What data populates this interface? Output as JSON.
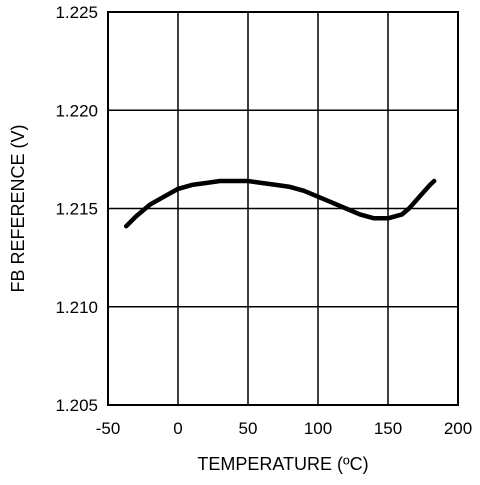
{
  "chart_data": {
    "type": "line",
    "title": "",
    "xlabel": "TEMPERATURE (ºC)",
    "ylabel": "FB REFERENCE (V)",
    "xlim": [
      -50,
      200
    ],
    "ylim": [
      1.205,
      1.225
    ],
    "x_ticks": [
      "-50",
      "0",
      "50",
      "100",
      "150",
      "200"
    ],
    "y_ticks": [
      "1.205",
      "1.210",
      "1.215",
      "1.220",
      "1.225"
    ],
    "grid": true,
    "legend": "none",
    "line_color": "#000000",
    "series": [
      {
        "x": [
          -37,
          -30,
          -20,
          -10,
          0,
          10,
          20,
          30,
          40,
          50,
          60,
          70,
          80,
          90,
          100,
          110,
          120,
          130,
          140,
          150,
          160,
          165,
          170,
          175,
          180,
          183
        ],
        "y": [
          1.2141,
          1.2146,
          1.2152,
          1.2156,
          1.216,
          1.2162,
          1.2163,
          1.2164,
          1.2164,
          1.2164,
          1.2163,
          1.2162,
          1.2161,
          1.2159,
          1.2156,
          1.2153,
          1.215,
          1.2147,
          1.2145,
          1.2145,
          1.2147,
          1.215,
          1.2154,
          1.2158,
          1.2162,
          1.2164
        ]
      }
    ]
  }
}
